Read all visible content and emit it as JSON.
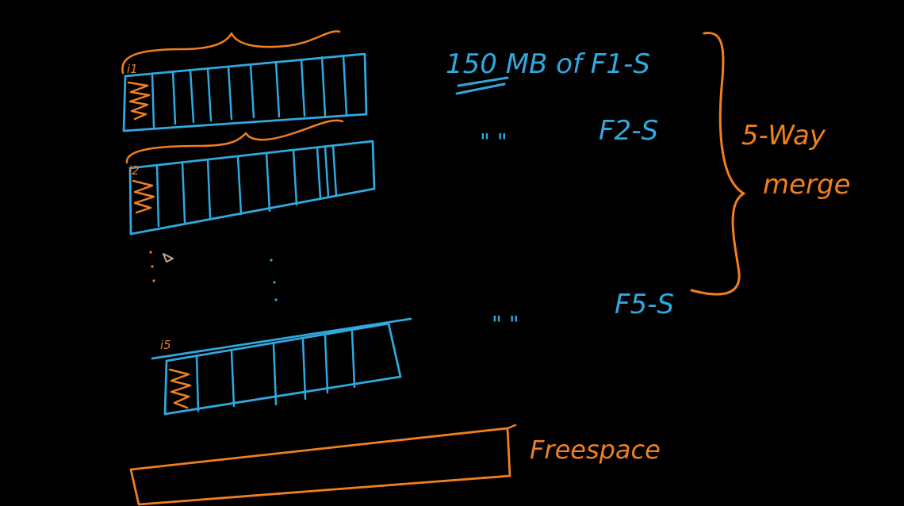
{
  "canvas": {
    "background": "#000000"
  },
  "colors": {
    "blue": "#2fa9e0",
    "orange": "#f07f1f"
  },
  "labels": {
    "buffer_1_index": "i1",
    "buffer_2_index": "i2",
    "buffer_5_index": "i5",
    "size_note": "150 MB of F1-S",
    "row_2_ditto": "\"   \"",
    "row_2_file": "F2-S",
    "row_5_ditto": "\"   \"",
    "row_5_file": "F5-S",
    "merge_line_1": "5-Way",
    "merge_line_2": "merge",
    "free_space": "Freespace"
  }
}
